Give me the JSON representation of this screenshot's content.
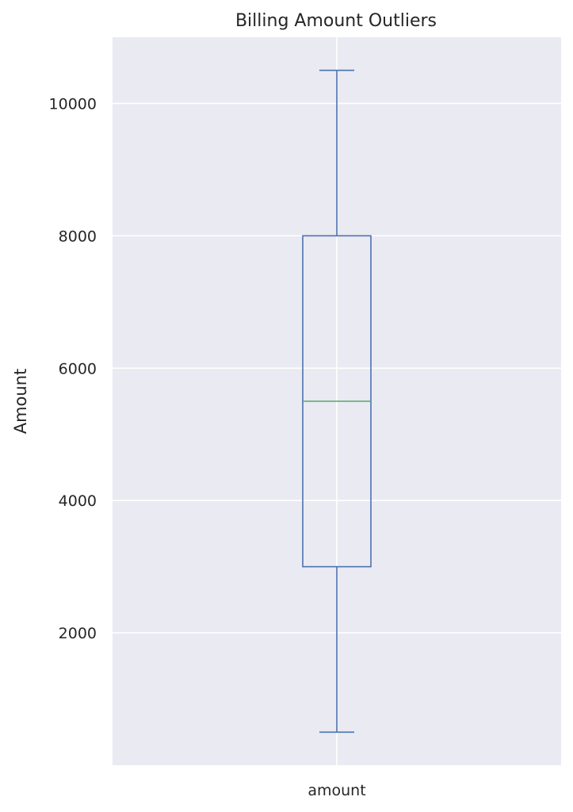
{
  "chart_data": {
    "type": "box",
    "title": "Billing Amount Outliers",
    "xlabel": "",
    "ylabel": "Amount",
    "categories": [
      "amount"
    ],
    "boxes": [
      {
        "category": "amount",
        "whisker_low": 500,
        "q1": 3000,
        "median": 5500,
        "q3": 8000,
        "whisker_high": 10500
      }
    ],
    "yticks": [
      2000,
      4000,
      6000,
      8000,
      10000
    ],
    "ylim": [
      0,
      11000
    ],
    "grid": true,
    "colors": {
      "background": "#eaeaf2",
      "grid": "#ffffff",
      "box": "#4c72b0",
      "median": "#55a868",
      "text": "#262626"
    }
  }
}
